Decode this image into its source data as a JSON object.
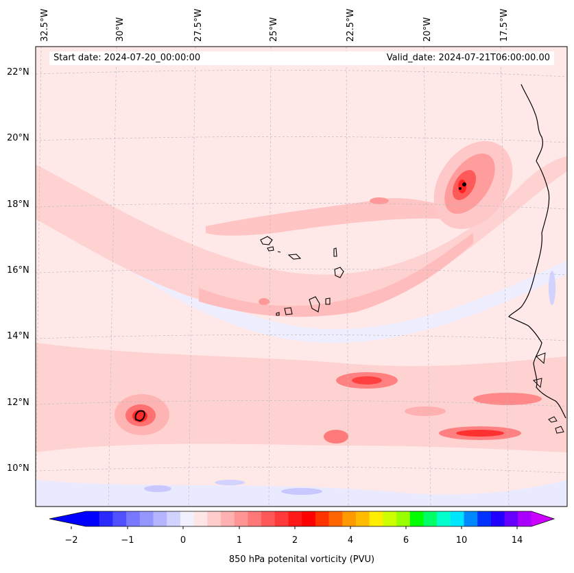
{
  "map": {
    "start_date_label": "Start date: 2024-07-20_00:00:00",
    "valid_date_label": "Valid_date: 2024-07-21T06:00:00.00",
    "longitude_labels": [
      "32.5°W",
      "30°W",
      "27.5°W",
      "25°W",
      "22.5°W",
      "20°W",
      "17.5°W"
    ],
    "latitude_labels": [
      "22°N",
      "20°N",
      "18°N",
      "16°N",
      "14°N",
      "12°N",
      "10°N"
    ],
    "field": "850 hPa potential vorticity",
    "background_color": "#ffe8e8"
  },
  "colorbar": {
    "title": "850 hPa potenital vorticity (PVU)",
    "tick_labels": [
      "−2",
      "−1",
      "0",
      "1",
      "2",
      "4",
      "6",
      "10",
      "14"
    ],
    "colors": [
      "#0000ff",
      "#2a2aff",
      "#5050ff",
      "#7878ff",
      "#9696ff",
      "#b4b4ff",
      "#d2d2ff",
      "#f0f0ff",
      "#ffe6e6",
      "#ffcccc",
      "#ffb0b0",
      "#ff9494",
      "#ff7878",
      "#ff5858",
      "#ff3a3a",
      "#ff1a1a",
      "#ff0000",
      "#ff3300",
      "#ff6600",
      "#ff9900",
      "#ffbb00",
      "#ffee00",
      "#ccff00",
      "#99ff00",
      "#00ff00",
      "#00ff66",
      "#00ffcc",
      "#00e5ff",
      "#0088ff",
      "#0033ff",
      "#2200ff",
      "#6600ff",
      "#aa00ff"
    ],
    "under_color": "#0000ff",
    "over_color": "#cc00ff"
  }
}
